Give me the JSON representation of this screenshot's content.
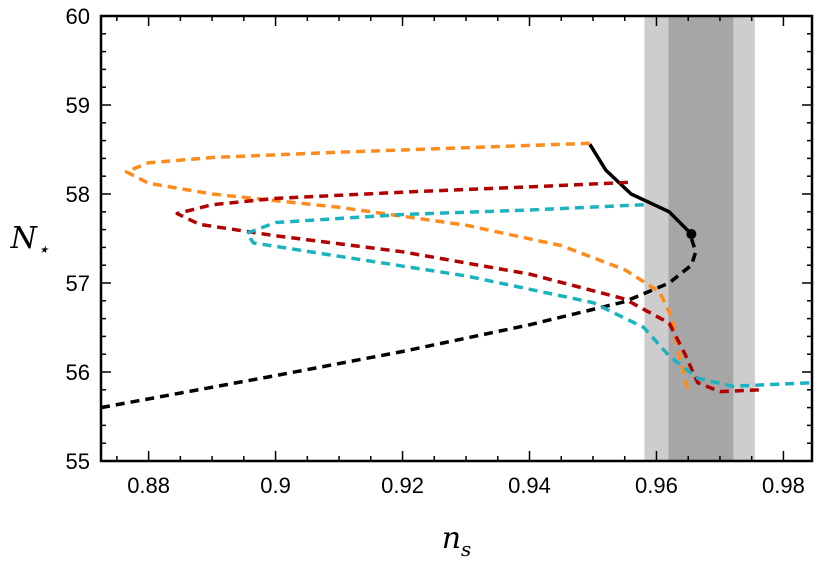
{
  "chart_data": {
    "type": "line",
    "title": "",
    "xlabel": "n",
    "xlabel_sub": "s",
    "ylabel": "N",
    "ylabel_sub": "⋆",
    "xlim": [
      0.8725,
      0.9845
    ],
    "ylim": [
      55,
      60
    ],
    "x_ticks": [
      0.88,
      0.9,
      0.92,
      0.94,
      0.96,
      0.98
    ],
    "x_tick_labels": [
      "0.88",
      "0.9",
      "0.92",
      "0.94",
      "0.96",
      "0.98"
    ],
    "y_ticks": [
      55,
      56,
      57,
      58,
      59,
      60
    ],
    "y_tick_labels": [
      "55",
      "56",
      "57",
      "58",
      "59",
      "60"
    ],
    "grid": false,
    "bands": [
      {
        "x0": 0.9581,
        "x1": 0.9755,
        "color": "#cdcdcd"
      },
      {
        "x0": 0.9619,
        "x1": 0.9721,
        "color": "#a6a6a6"
      }
    ],
    "series": [
      {
        "color": "#000000",
        "style": "dashed",
        "points": [
          [
            0.8725,
            55.6
          ],
          [
            0.9,
            55.96
          ],
          [
            0.92,
            56.23
          ],
          [
            0.94,
            56.53
          ],
          [
            0.955,
            56.79
          ],
          [
            0.962,
            57.0
          ],
          [
            0.9655,
            57.2
          ],
          [
            0.9662,
            57.35
          ],
          [
            0.9655,
            57.5
          ]
        ]
      },
      {
        "color": "#000000",
        "style": "solid",
        "points": [
          [
            0.9495,
            58.56
          ],
          [
            0.952,
            58.27
          ],
          [
            0.956,
            58.0
          ],
          [
            0.962,
            57.8
          ],
          [
            0.9655,
            57.55
          ]
        ]
      },
      {
        "color": "#ff8c1a",
        "style": "dashed",
        "points": [
          [
            0.9495,
            58.57
          ],
          [
            0.93,
            58.52
          ],
          [
            0.91,
            58.47
          ],
          [
            0.89,
            58.41
          ],
          [
            0.88,
            58.35
          ],
          [
            0.8765,
            58.25
          ],
          [
            0.88,
            58.12
          ],
          [
            0.89,
            58.0
          ],
          [
            0.91,
            57.85
          ],
          [
            0.93,
            57.65
          ],
          [
            0.945,
            57.42
          ],
          [
            0.955,
            57.15
          ],
          [
            0.9605,
            56.9
          ],
          [
            0.9625,
            56.6
          ],
          [
            0.9635,
            56.2
          ],
          [
            0.9645,
            55.95
          ],
          [
            0.965,
            55.75
          ]
        ]
      },
      {
        "color": "#b30000",
        "style": "dashed",
        "points": [
          [
            0.9555,
            58.13
          ],
          [
            0.94,
            58.08
          ],
          [
            0.92,
            58.02
          ],
          [
            0.9,
            57.95
          ],
          [
            0.89,
            57.88
          ],
          [
            0.8845,
            57.78
          ],
          [
            0.888,
            57.66
          ],
          [
            0.9,
            57.53
          ],
          [
            0.92,
            57.35
          ],
          [
            0.94,
            57.1
          ],
          [
            0.955,
            56.82
          ],
          [
            0.962,
            56.55
          ],
          [
            0.9645,
            56.2
          ],
          [
            0.9665,
            55.88
          ],
          [
            0.97,
            55.78
          ],
          [
            0.9765,
            55.8
          ]
        ]
      },
      {
        "color": "#1ab3c0",
        "style": "dashed",
        "points": [
          [
            0.958,
            57.88
          ],
          [
            0.94,
            57.82
          ],
          [
            0.92,
            57.77
          ],
          [
            0.9,
            57.68
          ],
          [
            0.8955,
            57.56
          ],
          [
            0.8965,
            57.45
          ],
          [
            0.91,
            57.3
          ],
          [
            0.93,
            57.08
          ],
          [
            0.95,
            56.78
          ],
          [
            0.958,
            56.5
          ],
          [
            0.962,
            56.18
          ],
          [
            0.9665,
            55.93
          ],
          [
            0.972,
            55.84
          ],
          [
            0.9845,
            55.88
          ]
        ]
      }
    ],
    "markers": [
      {
        "x": 0.9655,
        "y": 57.55,
        "color": "#000000"
      }
    ]
  }
}
